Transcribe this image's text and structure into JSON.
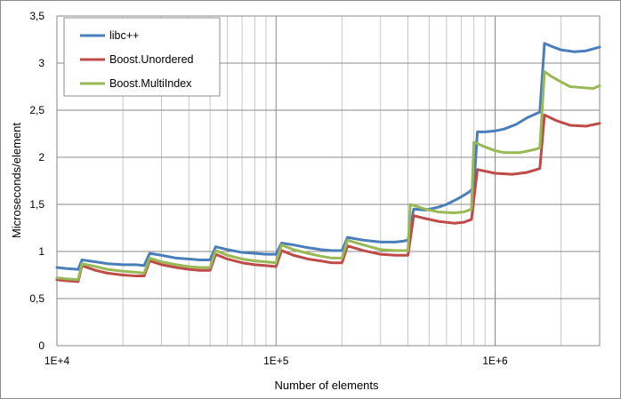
{
  "chart_data": {
    "type": "line",
    "title": "",
    "xlabel": "Number of elements",
    "ylabel": "Microseconds/element",
    "x_scale": "log",
    "xlim": [
      10000,
      3000000
    ],
    "ylim": [
      0,
      3.5
    ],
    "x_ticks": [
      {
        "value": 10000,
        "label": "1E+4"
      },
      {
        "value": 100000,
        "label": "1E+5"
      },
      {
        "value": 1000000,
        "label": "1E+6"
      }
    ],
    "y_ticks": [
      {
        "value": 0,
        "label": "0"
      },
      {
        "value": 0.5,
        "label": "0,5"
      },
      {
        "value": 1,
        "label": "1"
      },
      {
        "value": 1.5,
        "label": "1,5"
      },
      {
        "value": 2,
        "label": "2"
      },
      {
        "value": 2.5,
        "label": "2,5"
      },
      {
        "value": 3,
        "label": "3"
      },
      {
        "value": 3.5,
        "label": "3,5"
      }
    ],
    "grid": true,
    "legend_position": "top-left",
    "series": [
      {
        "name": "libc++",
        "color": "#4a7ebb",
        "points": [
          [
            10000,
            0.83
          ],
          [
            11000,
            0.82
          ],
          [
            12500,
            0.81
          ],
          [
            13000,
            0.91
          ],
          [
            15000,
            0.89
          ],
          [
            17000,
            0.87
          ],
          [
            20000,
            0.86
          ],
          [
            23000,
            0.86
          ],
          [
            25000,
            0.85
          ],
          [
            26500,
            0.98
          ],
          [
            30000,
            0.96
          ],
          [
            35000,
            0.93
          ],
          [
            40000,
            0.92
          ],
          [
            45000,
            0.91
          ],
          [
            50000,
            0.91
          ],
          [
            53000,
            1.05
          ],
          [
            60000,
            1.02
          ],
          [
            70000,
            0.99
          ],
          [
            80000,
            0.98
          ],
          [
            90000,
            0.97
          ],
          [
            100000,
            0.97
          ],
          [
            106000,
            1.09
          ],
          [
            120000,
            1.07
          ],
          [
            140000,
            1.04
          ],
          [
            160000,
            1.02
          ],
          [
            180000,
            1.01
          ],
          [
            200000,
            1.01
          ],
          [
            212000,
            1.15
          ],
          [
            250000,
            1.12
          ],
          [
            300000,
            1.1
          ],
          [
            350000,
            1.1
          ],
          [
            380000,
            1.11
          ],
          [
            400000,
            1.12
          ],
          [
            425000,
            1.45
          ],
          [
            480000,
            1.44
          ],
          [
            550000,
            1.47
          ],
          [
            600000,
            1.5
          ],
          [
            650000,
            1.54
          ],
          [
            700000,
            1.58
          ],
          [
            760000,
            1.63
          ],
          [
            800000,
            1.68
          ],
          [
            830000,
            2.27
          ],
          [
            900000,
            2.27
          ],
          [
            1000000,
            2.28
          ],
          [
            1100000,
            2.3
          ],
          [
            1250000,
            2.35
          ],
          [
            1400000,
            2.42
          ],
          [
            1600000,
            2.48
          ],
          [
            1680000,
            3.21
          ],
          [
            1800000,
            3.18
          ],
          [
            2000000,
            3.14
          ],
          [
            2300000,
            3.12
          ],
          [
            2600000,
            3.13
          ],
          [
            2800000,
            3.15
          ],
          [
            3000000,
            3.17
          ]
        ]
      },
      {
        "name": "Boost.Unordered",
        "color": "#be4b48",
        "points": [
          [
            10000,
            0.7
          ],
          [
            11000,
            0.69
          ],
          [
            12500,
            0.68
          ],
          [
            13000,
            0.85
          ],
          [
            15000,
            0.8
          ],
          [
            17000,
            0.77
          ],
          [
            20000,
            0.75
          ],
          [
            23000,
            0.74
          ],
          [
            25000,
            0.74
          ],
          [
            26500,
            0.9
          ],
          [
            30000,
            0.86
          ],
          [
            35000,
            0.83
          ],
          [
            40000,
            0.81
          ],
          [
            45000,
            0.8
          ],
          [
            50000,
            0.8
          ],
          [
            53000,
            0.97
          ],
          [
            60000,
            0.92
          ],
          [
            70000,
            0.88
          ],
          [
            80000,
            0.86
          ],
          [
            90000,
            0.85
          ],
          [
            100000,
            0.84
          ],
          [
            106000,
            1.01
          ],
          [
            120000,
            0.96
          ],
          [
            140000,
            0.92
          ],
          [
            160000,
            0.9
          ],
          [
            180000,
            0.88
          ],
          [
            200000,
            0.88
          ],
          [
            212000,
            1.06
          ],
          [
            250000,
            1.01
          ],
          [
            300000,
            0.97
          ],
          [
            350000,
            0.96
          ],
          [
            400000,
            0.96
          ],
          [
            425000,
            1.38
          ],
          [
            480000,
            1.35
          ],
          [
            550000,
            1.32
          ],
          [
            650000,
            1.3
          ],
          [
            720000,
            1.31
          ],
          [
            780000,
            1.34
          ],
          [
            830000,
            1.87
          ],
          [
            1000000,
            1.83
          ],
          [
            1200000,
            1.82
          ],
          [
            1400000,
            1.84
          ],
          [
            1600000,
            1.88
          ],
          [
            1680000,
            2.45
          ],
          [
            1900000,
            2.39
          ],
          [
            2200000,
            2.34
          ],
          [
            2600000,
            2.33
          ],
          [
            3000000,
            2.36
          ]
        ]
      },
      {
        "name": "Boost.MultiIndex",
        "color": "#98b954",
        "points": [
          [
            10000,
            0.72
          ],
          [
            11000,
            0.71
          ],
          [
            12500,
            0.7
          ],
          [
            13000,
            0.87
          ],
          [
            15000,
            0.84
          ],
          [
            17000,
            0.81
          ],
          [
            20000,
            0.79
          ],
          [
            23000,
            0.78
          ],
          [
            25000,
            0.77
          ],
          [
            26500,
            0.93
          ],
          [
            30000,
            0.89
          ],
          [
            35000,
            0.86
          ],
          [
            40000,
            0.84
          ],
          [
            45000,
            0.83
          ],
          [
            50000,
            0.83
          ],
          [
            53000,
            1.01
          ],
          [
            60000,
            0.96
          ],
          [
            70000,
            0.92
          ],
          [
            80000,
            0.9
          ],
          [
            90000,
            0.89
          ],
          [
            100000,
            0.88
          ],
          [
            106000,
            1.07
          ],
          [
            120000,
            1.02
          ],
          [
            140000,
            0.98
          ],
          [
            160000,
            0.95
          ],
          [
            180000,
            0.93
          ],
          [
            200000,
            0.93
          ],
          [
            212000,
            1.12
          ],
          [
            250000,
            1.07
          ],
          [
            300000,
            1.02
          ],
          [
            350000,
            1.01
          ],
          [
            400000,
            1.01
          ],
          [
            410000,
            1.5
          ],
          [
            480000,
            1.45
          ],
          [
            550000,
            1.42
          ],
          [
            650000,
            1.41
          ],
          [
            720000,
            1.42
          ],
          [
            780000,
            1.45
          ],
          [
            800000,
            2.16
          ],
          [
            900000,
            2.11
          ],
          [
            1000000,
            2.07
          ],
          [
            1100000,
            2.05
          ],
          [
            1300000,
            2.05
          ],
          [
            1500000,
            2.08
          ],
          [
            1600000,
            2.1
          ],
          [
            1680000,
            2.91
          ],
          [
            1800000,
            2.86
          ],
          [
            2000000,
            2.8
          ],
          [
            2200000,
            2.75
          ],
          [
            2500000,
            2.74
          ],
          [
            2800000,
            2.73
          ],
          [
            3000000,
            2.76
          ]
        ]
      }
    ]
  }
}
